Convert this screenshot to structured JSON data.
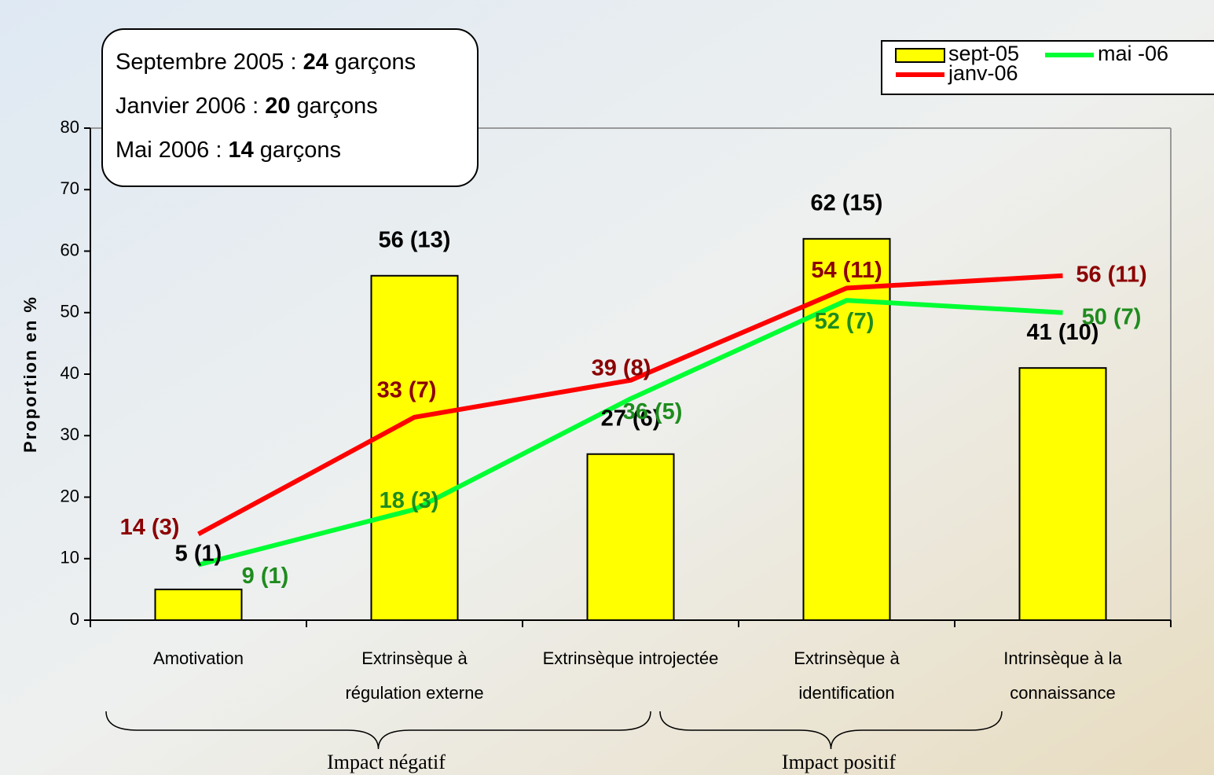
{
  "chart_data": {
    "type": "bar",
    "categories": [
      "Amotivation",
      "Extrinsèque à\nrégulation externe",
      "Extrinsèque introjectée",
      "Extrinsèque à\nidentification",
      "Intrinsèque à la\nconnaissance"
    ],
    "series": [
      {
        "name": "sept-05",
        "type": "bar",
        "color": "#ffff00",
        "values": [
          5,
          56,
          27,
          62,
          41
        ],
        "value_labels": [
          "5 (1)",
          "56 (13)",
          "27 (6)",
          "62 (15)",
          "41 (10)"
        ],
        "label_color": "#000000"
      },
      {
        "name": "janv-06",
        "type": "line",
        "color": "#ff0000",
        "values": [
          14,
          33,
          39,
          54,
          56
        ],
        "value_labels": [
          "14 (3)",
          "33 (7)",
          "39 (8)",
          "54 (11)",
          "56 (11)"
        ],
        "label_color": "#8b0000"
      },
      {
        "name": "mai -06",
        "type": "line",
        "color": "#00ff33",
        "values": [
          9,
          18,
          36,
          52,
          50
        ],
        "value_labels": [
          "9 (1)",
          "18 (3)",
          "36 (5)",
          "52 (7)",
          "50 (7)"
        ],
        "label_color": "#1e8c1e"
      }
    ],
    "y_label": "Proportion en %",
    "ylim": [
      0,
      80
    ],
    "yticks": [
      0,
      10,
      20,
      30,
      40,
      50,
      60,
      70,
      80
    ],
    "legend": "top-right",
    "info": [
      [
        "Septembre 2005 : ",
        "24",
        " garçons"
      ],
      [
        "Janvier 2006 : ",
        "20",
        " garçons"
      ],
      [
        "Mai 2006 : ",
        "14",
        " garçons"
      ]
    ],
    "groups": [
      "Impact négatif",
      "Impact positif"
    ]
  }
}
